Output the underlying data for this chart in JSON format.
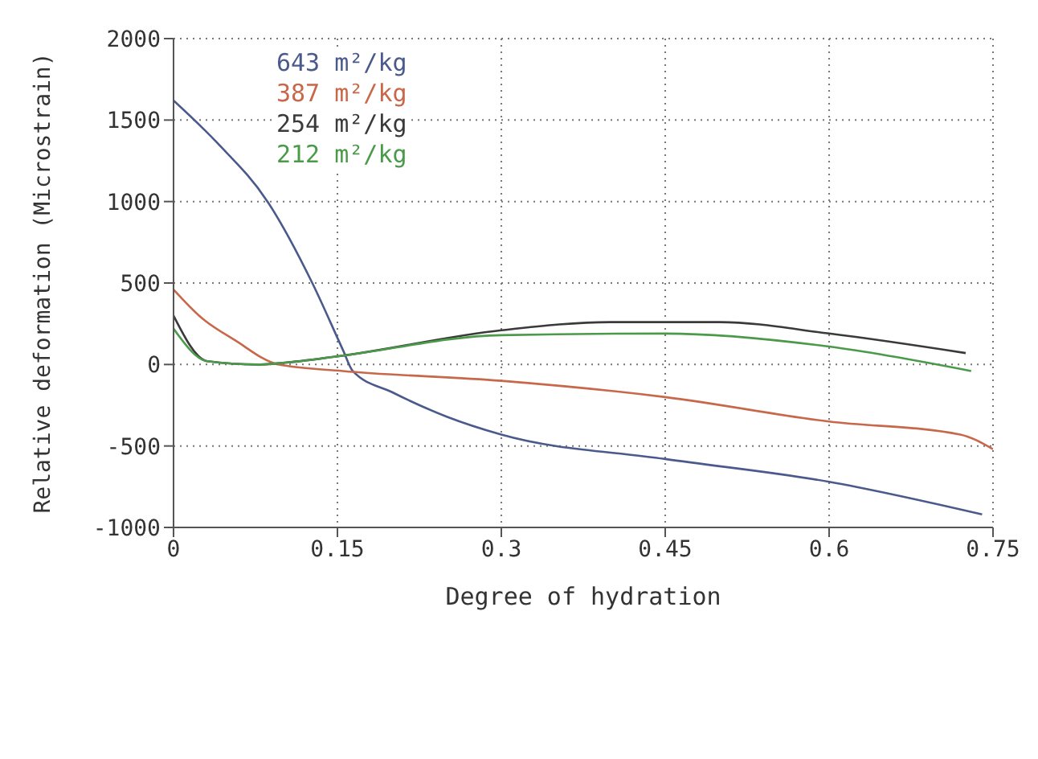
{
  "chart_data": {
    "type": "line",
    "xlabel": "Degree of hydration",
    "ylabel": "Relative deformation (Microstrain)",
    "xlim": [
      0,
      0.75
    ],
    "xticks": [
      0,
      0.15,
      0.3,
      0.45,
      0.6,
      0.75
    ],
    "ylim": [
      -1000,
      2000
    ],
    "yticks": [
      -1000,
      -500,
      0,
      500,
      1000,
      1500,
      2000
    ],
    "grid": true,
    "legend": "top left",
    "line_style": "solid",
    "marker": "none",
    "series": [
      {
        "name": "643 m²/kg",
        "color": "#4a5a8c",
        "x": [
          0,
          0.04,
          0.086,
          0.127,
          0.155,
          0.164,
          0.2,
          0.25,
          0.3,
          0.45,
          0.6,
          0.74
        ],
        "values": [
          1620,
          1360,
          1000,
          500,
          90,
          -40,
          -170,
          -320,
          -430,
          -580,
          -720,
          -920
        ]
      },
      {
        "name": "387 m²/kg",
        "color": "#c8684a",
        "x": [
          0,
          0.025,
          0.056,
          0.096,
          0.155,
          0.3,
          0.45,
          0.6,
          0.72,
          0.75
        ],
        "values": [
          460,
          290,
          150,
          0,
          -40,
          -100,
          -200,
          -350,
          -430,
          -520
        ]
      },
      {
        "name": "254 m²/kg",
        "color": "#3a3a3a",
        "x": [
          0,
          0.031,
          0.076,
          0.1,
          0.15,
          0.3,
          0.4,
          0.5,
          0.6,
          0.725
        ],
        "values": [
          300,
          20,
          0,
          10,
          50,
          210,
          260,
          260,
          190,
          70
        ]
      },
      {
        "name": "212 m²/kg",
        "color": "#4a9a4a",
        "x": [
          0,
          0.031,
          0.076,
          0.1,
          0.15,
          0.3,
          0.45,
          0.6,
          0.73
        ],
        "values": [
          220,
          20,
          0,
          10,
          50,
          180,
          190,
          110,
          -40
        ]
      }
    ]
  }
}
